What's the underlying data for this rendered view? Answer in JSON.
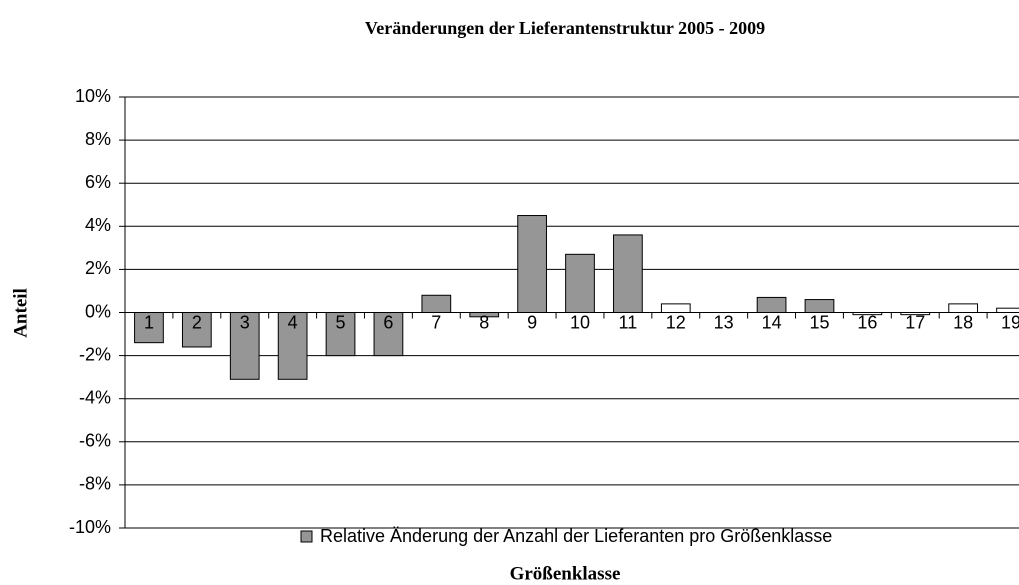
{
  "chart_data": {
    "type": "bar",
    "title": "Veränderungen der Lieferantenstruktur 2005 - 2009",
    "y_label": "Anteil",
    "x_label": "Größenklasse",
    "categories": [
      "1",
      "2",
      "3",
      "4",
      "5",
      "6",
      "7",
      "8",
      "9",
      "10",
      "11",
      "12",
      "13",
      "14",
      "15",
      "16",
      "17",
      "18",
      "19"
    ],
    "series": [
      {
        "name": "Relative Änderung der Anzahl der Lieferanten pro Größenklasse",
        "color": "#969696",
        "values": [
          -1.4,
          -1.6,
          -3.1,
          -3.1,
          -2.0,
          -2.0,
          0.8,
          -0.2,
          4.5,
          2.7,
          3.6,
          0.4,
          0,
          0.7,
          0.6,
          -0.1,
          -0.1,
          0.4,
          0.2
        ],
        "colors": [
          "#969696",
          "#969696",
          "#969696",
          "#969696",
          "#969696",
          "#969696",
          "#969696",
          "#969696",
          "#969696",
          "#969696",
          "#969696",
          "#ffffff",
          "#ffffff",
          "#969696",
          "#969696",
          "#ffffff",
          "#ffffff",
          "#ffffff",
          "#ffffff"
        ]
      }
    ],
    "ylim": [
      -10,
      10
    ],
    "yticks": [
      {
        "value": -10,
        "label": "-10%"
      },
      {
        "value": -8,
        "label": "-8%"
      },
      {
        "value": -6,
        "label": "-6%"
      },
      {
        "value": -4,
        "label": "-4%"
      },
      {
        "value": -2,
        "label": "-2%"
      },
      {
        "value": 0,
        "label": "0%"
      },
      {
        "value": 2,
        "label": "2%"
      },
      {
        "value": 4,
        "label": "4%"
      },
      {
        "value": 6,
        "label": "6%"
      },
      {
        "value": 8,
        "label": "8%"
      },
      {
        "value": 10,
        "label": "10%"
      }
    ],
    "grid": true
  }
}
